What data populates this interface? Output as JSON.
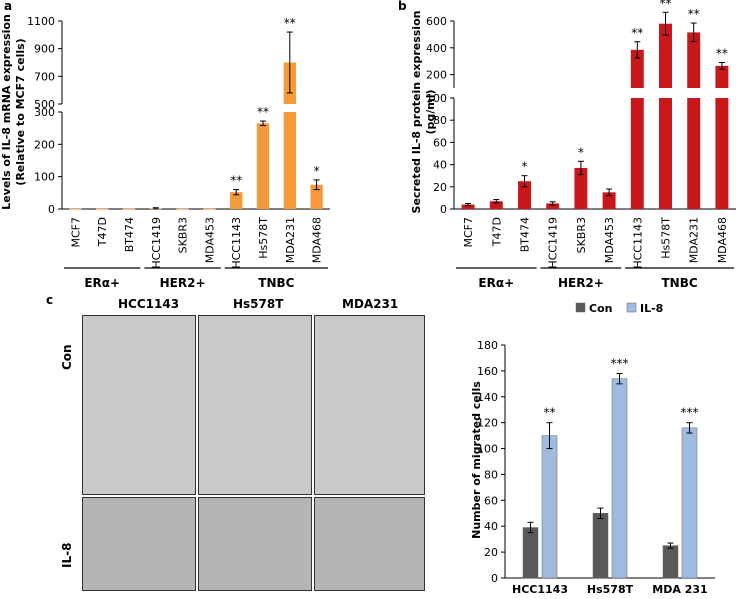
{
  "panels": {
    "a": "a",
    "b": "b",
    "c": "c"
  },
  "groups": {
    "era": "ERα+",
    "her2": "HER2+",
    "tnbc": "TNBC"
  },
  "micrograph": {
    "columns": [
      "HCC1143",
      "Hs578T",
      "MDA231"
    ],
    "rows": [
      "Con",
      "IL-8"
    ]
  },
  "colors": {
    "orange": "#f59a3a",
    "red": "#c8181c",
    "con": "#595959",
    "il8": "#9fbbe0"
  },
  "chart_data": [
    {
      "panel": "a",
      "type": "bar",
      "ylabel": "Levels of IL-8 mRNA expression (Relative to MCF7 cells)",
      "ylabel_lines": [
        "Levels of IL-8 mRNA expression",
        "(Relative to MCF7 cells)"
      ],
      "axis_break": true,
      "lower_ylim": [
        0,
        300
      ],
      "upper_ylim": [
        500,
        1100
      ],
      "lower_ticks": [
        "0",
        "100",
        "200",
        "300"
      ],
      "upper_ticks": [
        "500",
        "700",
        "900",
        "1100"
      ],
      "categories": [
        "MCF7",
        "T47D",
        "BT474",
        "HCC1419",
        "SKBR3",
        "MDA453",
        "HCC1143",
        "Hs578T",
        "MDA231",
        "MDA468"
      ],
      "values": [
        1,
        1,
        1,
        2,
        1,
        1,
        52,
        265,
        800,
        75
      ],
      "errors": [
        0,
        0,
        0,
        2,
        0,
        0,
        8,
        7,
        220,
        15
      ],
      "significance": [
        "",
        "",
        "",
        "",
        "",
        "",
        "**",
        "**",
        "**",
        "*"
      ],
      "color": "#f59a3a"
    },
    {
      "panel": "b",
      "type": "bar",
      "ylabel": "Secreted IL-8 protein expression (pg/ml)",
      "ylabel_lines": [
        "Secreted IL-8 protein expression",
        "(pg/ml)"
      ],
      "axis_break": true,
      "lower_ylim": [
        0,
        100
      ],
      "upper_ylim": [
        100,
        600
      ],
      "lower_ticks": [
        "0",
        "20",
        "40",
        "60",
        "80",
        "100"
      ],
      "upper_ticks": [
        "200",
        "400",
        "600"
      ],
      "categories": [
        "MCF7",
        "T47D",
        "BT474",
        "HCC1419",
        "SKBR3",
        "MDA453",
        "HCC1143",
        "Hs578T",
        "MDA231",
        "MDA468"
      ],
      "values": [
        4,
        7,
        25,
        5,
        37,
        15,
        385,
        580,
        515,
        265
      ],
      "errors": [
        1,
        1.5,
        5,
        1.5,
        6,
        3,
        60,
        85,
        70,
        25
      ],
      "significance": [
        "",
        "",
        "*",
        "",
        "*",
        "",
        "**",
        "**",
        "**",
        "**"
      ],
      "color": "#c8181c"
    },
    {
      "panel": "c",
      "type": "bar",
      "ylabel": "Number of migrated cells",
      "ylim": [
        0,
        180
      ],
      "yticks": [
        "0",
        "20",
        "40",
        "60",
        "80",
        "100",
        "120",
        "140",
        "160",
        "180"
      ],
      "categories": [
        "HCC1143",
        "Hs578T",
        "MDA 231"
      ],
      "series": [
        {
          "name": "Con",
          "values": [
            39,
            50,
            25
          ],
          "errors": [
            4,
            4,
            2
          ],
          "color": "#595959"
        },
        {
          "name": "IL-8",
          "values": [
            110,
            154,
            116
          ],
          "errors": [
            10,
            4,
            4
          ],
          "color": "#9fbbe0"
        }
      ],
      "significance": [
        "**",
        "***",
        "***"
      ]
    }
  ]
}
